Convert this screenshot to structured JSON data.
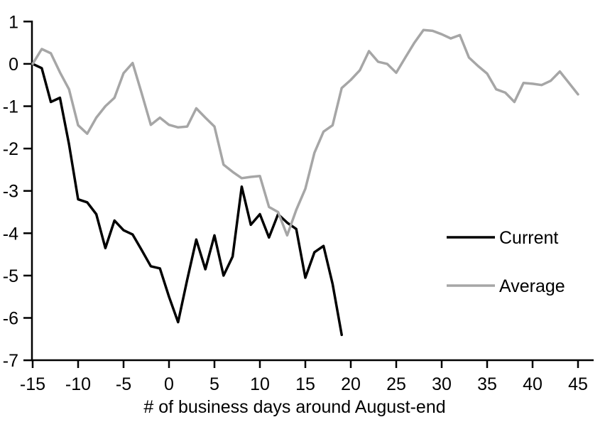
{
  "chart_data": {
    "type": "line",
    "title": "",
    "xlabel": "# of business days around August-end",
    "ylabel": "",
    "xlim": [
      -15,
      45
    ],
    "ylim": [
      -7,
      1
    ],
    "x_ticks": [
      -15,
      -10,
      -5,
      0,
      5,
      10,
      15,
      20,
      25,
      30,
      35,
      40,
      45
    ],
    "y_ticks": [
      1,
      0,
      -1,
      -2,
      -3,
      -4,
      -5,
      -6,
      -7
    ],
    "grid": false,
    "legend_position": "right-middle",
    "background_color": "#ffffff",
    "axis_color": "#000000",
    "series": [
      {
        "name": "Current",
        "color": "#000000",
        "x": [
          -15,
          -14,
          -13,
          -12,
          -11,
          -10,
          -9,
          -8,
          -7,
          -6,
          -5,
          -4,
          -3,
          -2,
          -1,
          0,
          1,
          2,
          3,
          4,
          5,
          6,
          7,
          8,
          9,
          10,
          11,
          12,
          13,
          14,
          15,
          16,
          17,
          18,
          19
        ],
        "values": [
          0,
          -0.1,
          -0.9,
          -0.8,
          -1.9,
          -3.2,
          -3.27,
          -3.55,
          -4.35,
          -3.7,
          -3.93,
          -4.03,
          -4.4,
          -4.78,
          -4.83,
          -5.5,
          -6.1,
          -5.1,
          -4.15,
          -4.85,
          -4.05,
          -5.0,
          -4.55,
          -2.9,
          -3.8,
          -3.55,
          -4.1,
          -3.55,
          -3.75,
          -3.9,
          -5.05,
          -4.45,
          -4.3,
          -5.2,
          -6.4
        ]
      },
      {
        "name": "Average",
        "color": "#a6a6a6",
        "x": [
          -15,
          -14,
          -13,
          -12,
          -11,
          -10,
          -9,
          -8,
          -7,
          -6,
          -5,
          -4,
          -3,
          -2,
          -1,
          0,
          1,
          2,
          3,
          4,
          5,
          6,
          7,
          8,
          9,
          10,
          11,
          12,
          13,
          14,
          15,
          16,
          17,
          18,
          19,
          20,
          21,
          22,
          23,
          24,
          25,
          26,
          27,
          28,
          29,
          30,
          31,
          32,
          33,
          34,
          35,
          36,
          37,
          38,
          39,
          40,
          41,
          42,
          43,
          44,
          45
        ],
        "values": [
          0,
          0.35,
          0.25,
          -0.2,
          -0.6,
          -1.45,
          -1.65,
          -1.27,
          -1.0,
          -0.8,
          -0.22,
          0.02,
          -0.7,
          -1.44,
          -1.27,
          -1.44,
          -1.5,
          -1.48,
          -1.05,
          -1.27,
          -1.48,
          -2.38,
          -2.55,
          -2.7,
          -2.67,
          -2.65,
          -3.38,
          -3.5,
          -4.05,
          -3.45,
          -2.95,
          -2.1,
          -1.6,
          -1.45,
          -0.57,
          -0.38,
          -0.15,
          0.3,
          0.05,
          0.0,
          -0.21,
          0.15,
          0.5,
          0.8,
          0.78,
          0.7,
          0.6,
          0.68,
          0.15,
          -0.05,
          -0.23,
          -0.6,
          -0.68,
          -0.9,
          -0.45,
          -0.47,
          -0.5,
          -0.4,
          -0.18,
          -0.45,
          -0.72
        ]
      }
    ]
  }
}
